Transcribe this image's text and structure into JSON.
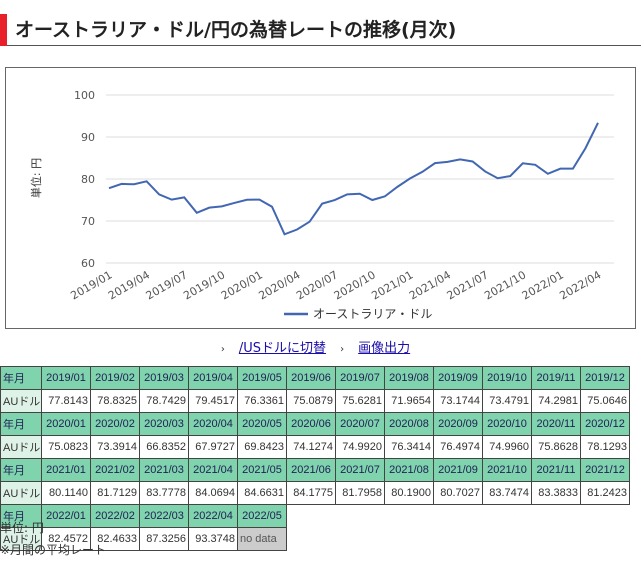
{
  "title": "オーストラリア・ドル/円の為替レートの推移(月次)",
  "links": {
    "switch": "/USドルに切替",
    "export": "画像出力"
  },
  "table": {
    "header_label": "年月",
    "row_label": "AUドル",
    "no_data": "no data",
    "rows": [
      {
        "months": [
          "2019/01",
          "2019/02",
          "2019/03",
          "2019/04",
          "2019/05",
          "2019/06",
          "2019/07",
          "2019/08",
          "2019/09",
          "2019/10",
          "2019/11",
          "2019/12"
        ],
        "values": [
          "77.8143",
          "78.8325",
          "78.7429",
          "79.4517",
          "76.3361",
          "75.0879",
          "75.6281",
          "71.9654",
          "73.1744",
          "73.4791",
          "74.2981",
          "75.0646"
        ]
      },
      {
        "months": [
          "2020/01",
          "2020/02",
          "2020/03",
          "2020/04",
          "2020/05",
          "2020/06",
          "2020/07",
          "2020/08",
          "2020/09",
          "2020/10",
          "2020/11",
          "2020/12"
        ],
        "values": [
          "75.0823",
          "73.3914",
          "66.8352",
          "67.9727",
          "69.8423",
          "74.1274",
          "74.9920",
          "76.3414",
          "76.4974",
          "74.9960",
          "75.8628",
          "78.1293"
        ]
      },
      {
        "months": [
          "2021/01",
          "2021/02",
          "2021/03",
          "2021/04",
          "2021/05",
          "2021/06",
          "2021/07",
          "2021/08",
          "2021/09",
          "2021/10",
          "2021/11",
          "2021/12"
        ],
        "values": [
          "80.1140",
          "81.7129",
          "83.7778",
          "84.0694",
          "84.6631",
          "84.1775",
          "81.7958",
          "80.1900",
          "80.7027",
          "83.7474",
          "83.3833",
          "81.2423"
        ]
      },
      {
        "months": [
          "2022/01",
          "2022/02",
          "2022/03",
          "2022/04",
          "2022/05"
        ],
        "values": [
          "82.4572",
          "82.4633",
          "87.3256",
          "93.3748",
          "no data"
        ]
      }
    ]
  },
  "notes": {
    "unit": "単位: 円",
    "avg": "※月間の平均レート"
  },
  "chart_data": {
    "type": "line",
    "title": "",
    "ylabel": "単位: 円",
    "ylim": [
      60,
      100
    ],
    "yticks": [
      "60",
      "70",
      "80",
      "90",
      "100"
    ],
    "xticks": [
      "2019/01",
      "2019/04",
      "2019/07",
      "2019/10",
      "2020/01",
      "2020/04",
      "2020/07",
      "2020/10",
      "2021/01",
      "2021/04",
      "2021/07",
      "2021/10",
      "2022/01",
      "2022/04"
    ],
    "legend": "オーストラリア・ドル",
    "legend_position": "bottom",
    "color": "#4267b2",
    "values": [
      77.8143,
      78.8325,
      78.7429,
      79.4517,
      76.3361,
      75.0879,
      75.6281,
      71.9654,
      73.1744,
      73.4791,
      74.2981,
      75.0646,
      75.0823,
      73.3914,
      66.8352,
      67.9727,
      69.8423,
      74.1274,
      74.992,
      76.3414,
      76.4974,
      74.996,
      75.8628,
      78.1293,
      80.114,
      81.7129,
      83.7778,
      84.0694,
      84.6631,
      84.1775,
      81.7958,
      80.19,
      80.7027,
      83.7474,
      83.3833,
      81.2423,
      82.4572,
      82.4633,
      87.3256,
      93.3748
    ]
  }
}
